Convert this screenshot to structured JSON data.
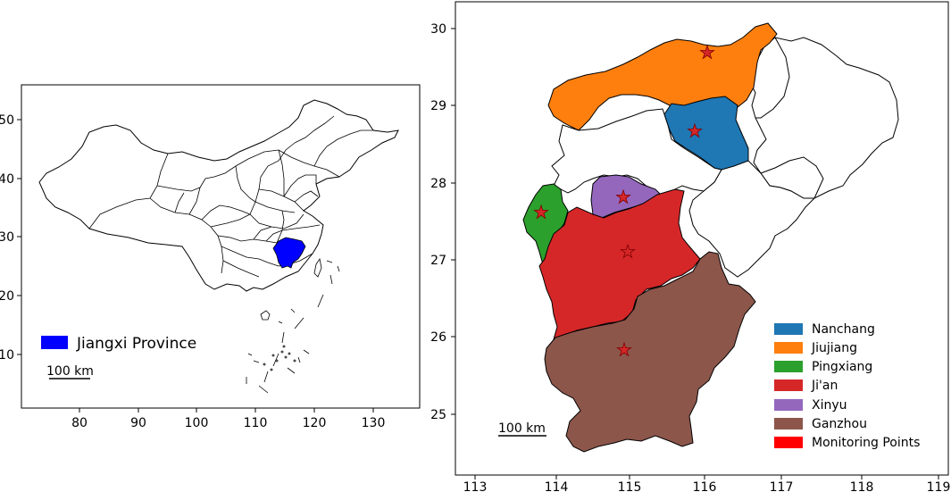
{
  "left_map": {
    "x_ticks": [
      "80",
      "90",
      "100",
      "110",
      "120",
      "130"
    ],
    "y_ticks": [
      "50",
      "40",
      "30",
      "20",
      "10"
    ],
    "legend_label": "Jiangxi Province",
    "highlight_color": "#0000ff",
    "scale_label": "100 km"
  },
  "right_map": {
    "x_ticks": [
      "113",
      "114",
      "115",
      "116",
      "117",
      "118",
      "119"
    ],
    "y_ticks": [
      "30",
      "29",
      "28",
      "27",
      "26",
      "25"
    ],
    "scale_label": "100 km",
    "legend": [
      {
        "label": "Nanchang",
        "color": "#1f77b4"
      },
      {
        "label": "Jiujiang",
        "color": "#ff7f0e"
      },
      {
        "label": "Pingxiang",
        "color": "#2ca02c"
      },
      {
        "label": "Ji'an",
        "color": "#d62728"
      },
      {
        "label": "Xinyu",
        "color": "#9467bd"
      },
      {
        "label": "Ganzhou",
        "color": "#8c564b"
      },
      {
        "label": "Monitoring Points",
        "color": "#ff0000"
      }
    ]
  }
}
